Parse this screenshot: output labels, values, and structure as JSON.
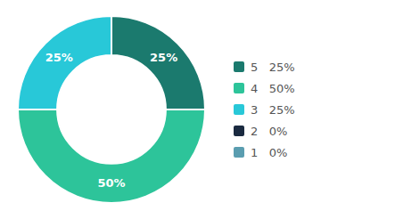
{
  "chart_data": {
    "type": "donut",
    "categories": [
      "5   25%",
      "4   50%",
      "3   25%",
      "2   0%",
      "1   0%"
    ],
    "values": [
      25,
      50,
      25,
      0,
      0
    ],
    "value_labels": [
      "25%",
      "50%",
      "25%",
      null,
      null
    ],
    "colors": [
      "#1b7a6e",
      "#2dc49a",
      "#28c8d8",
      "#1a2a40",
      "#5a9db0"
    ],
    "data_labels": true,
    "legend": "right"
  }
}
